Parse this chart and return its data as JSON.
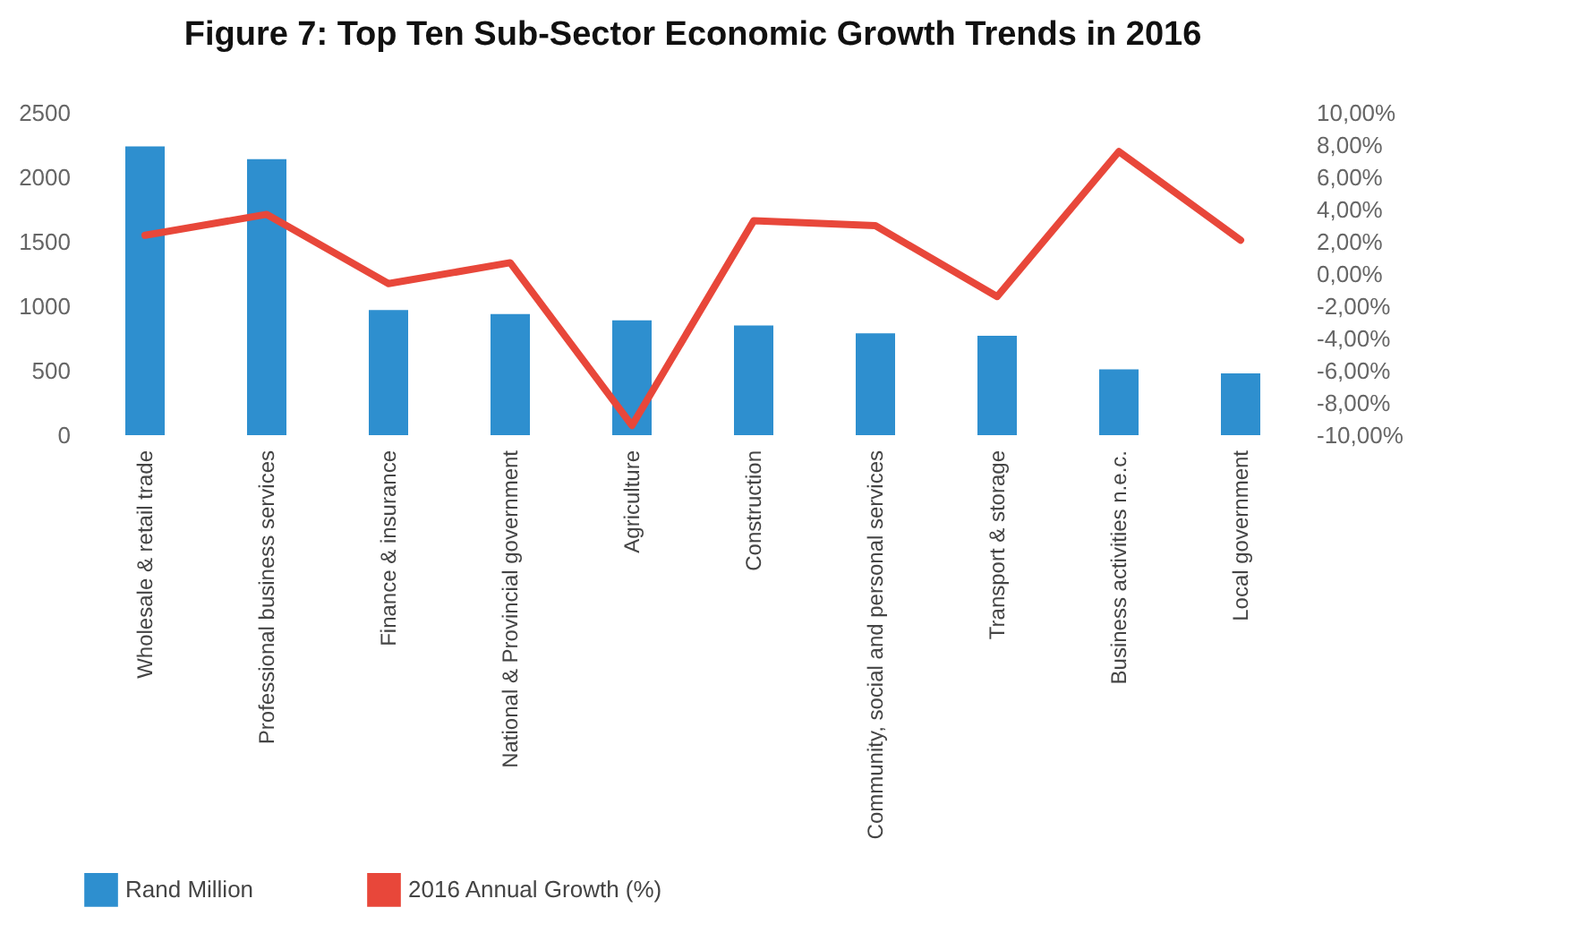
{
  "chart_data": {
    "type": "bar",
    "title": "Figure 7: Top Ten Sub-Sector Economic Growth Trends in 2016",
    "categories": [
      "Wholesale & retail trade",
      "Professional business services",
      "Finance & insurance",
      "National & Provincial government",
      "Agriculture",
      "Construction",
      "Community, social and personal services",
      "Transport & storage",
      "Business activities n.e.c.",
      "Local government"
    ],
    "series": [
      {
        "name": "Rand Million",
        "color": "#2e8fcf",
        "values": [
          2240,
          2140,
          970,
          940,
          890,
          850,
          790,
          770,
          510,
          480
        ]
      },
      {
        "name": "2016 Annual Growth (%)",
        "type": "line",
        "axis": "y2",
        "color": "#e8473a",
        "values": [
          2.4,
          3.7,
          -0.6,
          0.7,
          -9.4,
          3.3,
          3.0,
          -1.4,
          7.6,
          2.1
        ]
      }
    ],
    "ylim": [
      0,
      2500
    ],
    "yticks": [
      0,
      500,
      1000,
      1500,
      2000,
      2500
    ],
    "y2lim": [
      -10,
      10
    ],
    "y2ticks": [
      {
        "value": -10,
        "label": "-10,00%"
      },
      {
        "value": -8,
        "label": "-8,00%"
      },
      {
        "value": -6,
        "label": "-6,00%"
      },
      {
        "value": -4,
        "label": "-4,00%"
      },
      {
        "value": -2,
        "label": "-2,00%"
      },
      {
        "value": 0,
        "label": "0,00%"
      },
      {
        "value": 2,
        "label": "2,00%"
      },
      {
        "value": 4,
        "label": "4,00%"
      },
      {
        "value": 6,
        "label": "6,00%"
      },
      {
        "value": 8,
        "label": "8,00%"
      },
      {
        "value": 10,
        "label": "10,00%"
      }
    ],
    "grid": false,
    "legend": "bottom"
  }
}
